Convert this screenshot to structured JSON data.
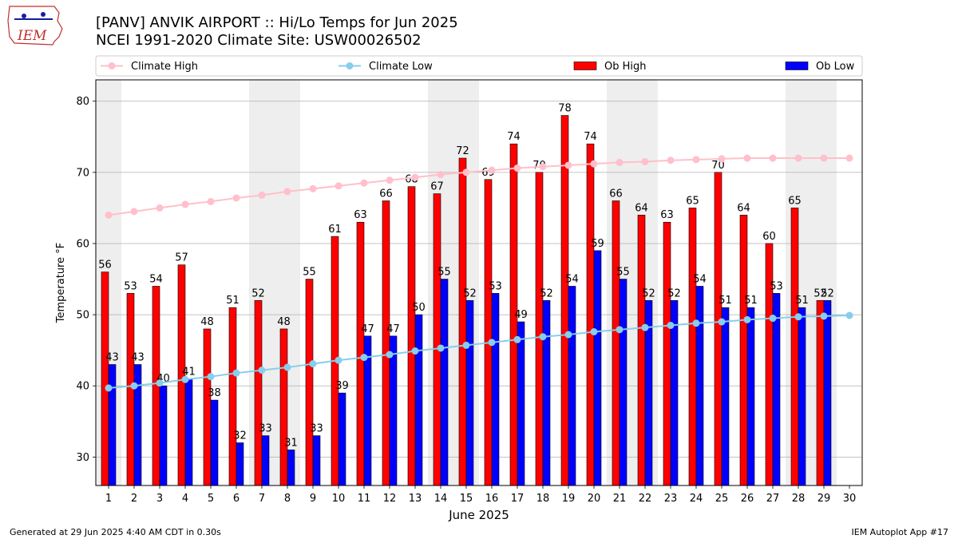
{
  "header": {
    "title_line1": "[PANV] ANVIK AIRPORT :: Hi/Lo Temps for Jun 2025",
    "title_line2": "NCEI 1991-2020 Climate Site: USW00026502",
    "logo_text": "IEM"
  },
  "footer": {
    "generated": "Generated at 29 Jun 2025 4:40 AM CDT in 0.30s",
    "app": "IEM Autoplot App #17"
  },
  "colors": {
    "ob_high": "#ff0000",
    "ob_low": "#0000ff",
    "climate_high": "#ffc0cb",
    "climate_low": "#87ceeb",
    "weekend_band": "#eeeeee",
    "grid": "#b0b0b0"
  },
  "chart_data": {
    "type": "bar",
    "xlabel": "June 2025",
    "ylabel": "Temperature °F",
    "ylim": [
      26,
      83
    ],
    "yticks": [
      30,
      40,
      50,
      60,
      70,
      80
    ],
    "grid": "horizontal",
    "legend_position": "top",
    "categories": [
      "1",
      "2",
      "3",
      "4",
      "5",
      "6",
      "7",
      "8",
      "9",
      "10",
      "11",
      "12",
      "13",
      "14",
      "15",
      "16",
      "17",
      "18",
      "19",
      "20",
      "21",
      "22",
      "23",
      "24",
      "25",
      "26",
      "27",
      "28",
      "29",
      "30"
    ],
    "shaded_days": [
      1,
      7,
      8,
      14,
      15,
      21,
      22,
      28,
      29
    ],
    "series": [
      {
        "name": "Climate High",
        "kind": "line",
        "values": [
          64.0,
          64.5,
          65.0,
          65.5,
          65.9,
          66.4,
          66.8,
          67.3,
          67.7,
          68.1,
          68.5,
          68.9,
          69.3,
          69.7,
          70.0,
          70.3,
          70.6,
          70.8,
          71.0,
          71.2,
          71.4,
          71.5,
          71.7,
          71.8,
          71.9,
          72.0,
          72.0,
          72.0,
          72.0,
          72.0
        ]
      },
      {
        "name": "Climate Low",
        "kind": "line",
        "values": [
          39.7,
          40.0,
          40.4,
          40.9,
          41.3,
          41.8,
          42.2,
          42.6,
          43.1,
          43.6,
          44.0,
          44.4,
          44.9,
          45.3,
          45.7,
          46.1,
          46.5,
          46.9,
          47.2,
          47.6,
          47.9,
          48.2,
          48.5,
          48.8,
          49.0,
          49.3,
          49.5,
          49.7,
          49.8,
          49.9
        ]
      },
      {
        "name": "Ob High",
        "kind": "bar",
        "values": [
          56,
          53,
          54,
          57,
          48,
          51,
          52,
          48,
          55,
          61,
          63,
          66,
          68,
          67,
          72,
          69,
          74,
          70,
          78,
          74,
          66,
          64,
          63,
          65,
          70,
          64,
          60,
          65,
          52,
          null
        ]
      },
      {
        "name": "Ob Low",
        "kind": "bar",
        "values": [
          43,
          43,
          40,
          41,
          38,
          32,
          33,
          31,
          33,
          39,
          47,
          47,
          50,
          55,
          52,
          53,
          49,
          52,
          54,
          59,
          55,
          52,
          52,
          54,
          51,
          51,
          53,
          51,
          52,
          null
        ]
      }
    ]
  }
}
